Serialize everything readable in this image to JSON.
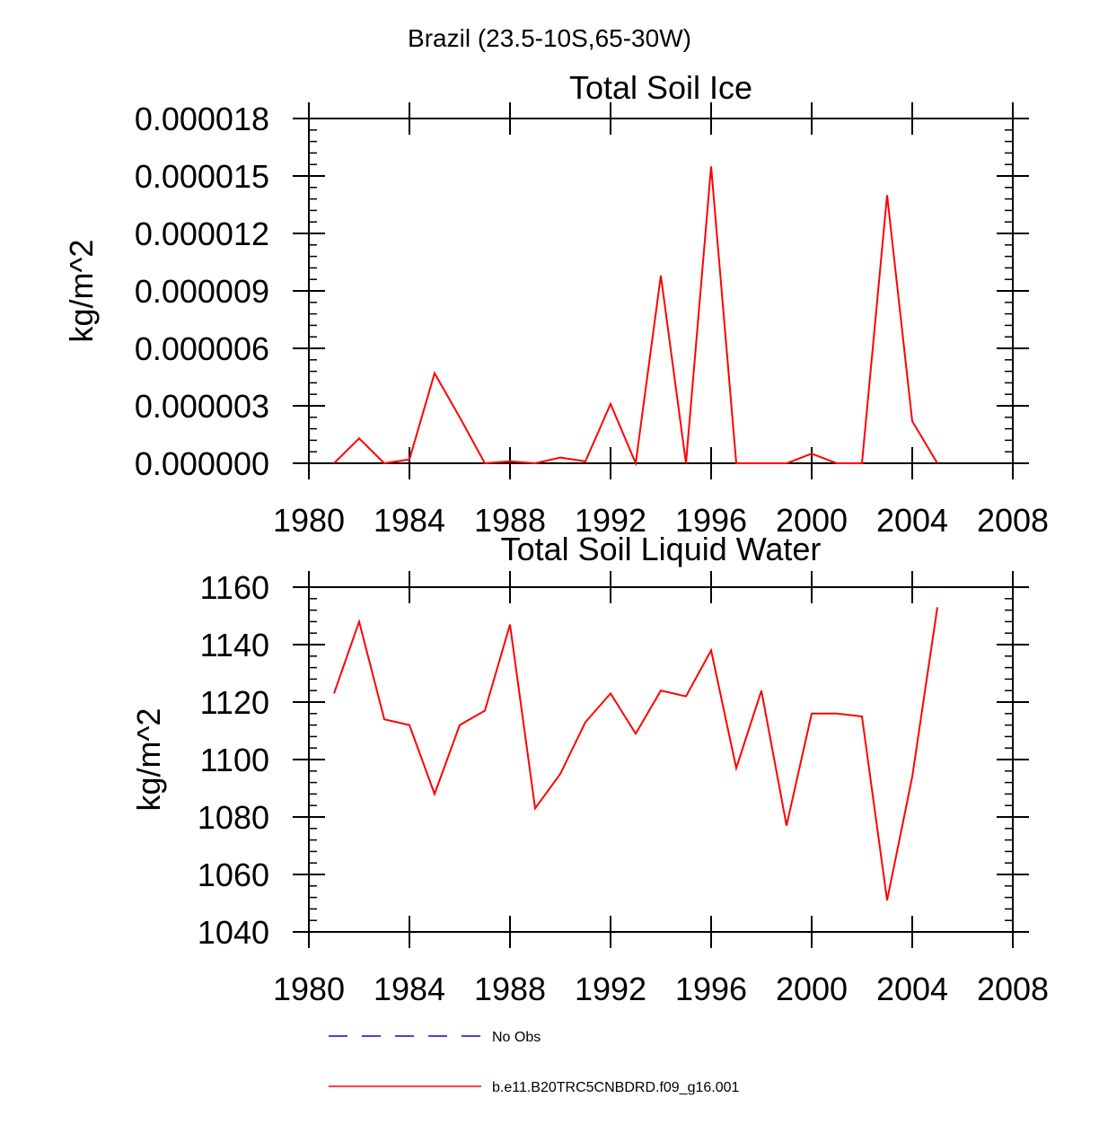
{
  "page_title": "Brazil (23.5-10S,65-30W)",
  "chart_data": [
    {
      "type": "line",
      "title": "Total Soil Ice",
      "ylabel": "kg/m^2",
      "xlabel": "",
      "xlim": [
        1980,
        2008
      ],
      "ylim": [
        0,
        1.8e-05
      ],
      "xticks": [
        1980,
        1984,
        1988,
        1992,
        1996,
        2000,
        2004,
        2008
      ],
      "xtick_labels": [
        "1980",
        "1984",
        "1988",
        "1992",
        "1996",
        "2000",
        "2004",
        "2008"
      ],
      "yticks": [
        0,
        3e-06,
        6e-06,
        9e-06,
        1.2e-05,
        1.5e-05,
        1.8e-05
      ],
      "ytick_labels": [
        "0.000000",
        "0.000003",
        "0.000006",
        "0.000009",
        "0.000012",
        "0.000015",
        "0.000018"
      ],
      "series": [
        {
          "name": "b.e11.B20TRC5CNBDRD.f09_g16.001",
          "color": "#ff0000",
          "x": [
            1981,
            1982,
            1983,
            1984,
            1985,
            1986,
            1987,
            1988,
            1989,
            1990,
            1991,
            1992,
            1993,
            1994,
            1995,
            1996,
            1997,
            1998,
            1999,
            2000,
            2001,
            2002,
            2003,
            2004,
            2005
          ],
          "y": [
            0.0,
            1.3e-06,
            0.0,
            2e-07,
            4.7e-06,
            2.4e-06,
            0.0,
            1e-07,
            0.0,
            3e-07,
            1e-07,
            3.1e-06,
            0.0,
            9.8e-06,
            0.0,
            1.55e-05,
            0.0,
            0.0,
            0.0,
            5e-07,
            0.0,
            0.0,
            1.4e-05,
            2.2e-06,
            0.0
          ]
        }
      ]
    },
    {
      "type": "line",
      "title": "Total Soil Liquid Water",
      "ylabel": "kg/m^2",
      "xlabel": "",
      "xlim": [
        1980,
        2008
      ],
      "ylim": [
        1040,
        1160
      ],
      "xticks": [
        1980,
        1984,
        1988,
        1992,
        1996,
        2000,
        2004,
        2008
      ],
      "xtick_labels": [
        "1980",
        "1984",
        "1988",
        "1992",
        "1996",
        "2000",
        "2004",
        "2008"
      ],
      "yticks": [
        1040,
        1060,
        1080,
        1100,
        1120,
        1140,
        1160
      ],
      "ytick_labels": [
        "1040",
        "1060",
        "1080",
        "1100",
        "1120",
        "1140",
        "1160"
      ],
      "series": [
        {
          "name": "b.e11.B20TRC5CNBDRD.f09_g16.001",
          "color": "#ff0000",
          "x": [
            1981,
            1982,
            1983,
            1984,
            1985,
            1986,
            1987,
            1988,
            1989,
            1990,
            1991,
            1992,
            1993,
            1994,
            1995,
            1996,
            1997,
            1998,
            1999,
            2000,
            2001,
            2002,
            2003,
            2004,
            2005
          ],
          "y": [
            1123,
            1148,
            1114,
            1112,
            1088,
            1112,
            1117,
            1147,
            1083,
            1095,
            1113,
            1123,
            1109,
            1124,
            1122,
            1138,
            1097,
            1124,
            1077,
            1116,
            1116,
            1115,
            1051,
            1094,
            1153
          ]
        }
      ]
    }
  ],
  "legend": [
    {
      "label": "No Obs",
      "color": "#0000ff",
      "style": "dashed"
    },
    {
      "label": "b.e11.B20TRC5CNBDRD.f09_g16.001",
      "color": "#ff0000",
      "style": "solid"
    }
  ]
}
